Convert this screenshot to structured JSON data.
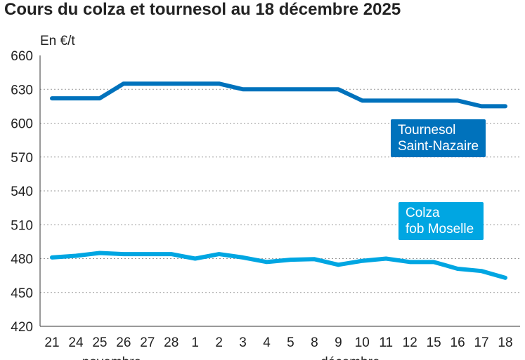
{
  "chart_data": {
    "type": "line",
    "title": "Cours du colza et tournesol au 18 décembre 2025",
    "ylabel": "En €/t",
    "ylim": [
      420,
      660
    ],
    "yticks": [
      420,
      450,
      480,
      510,
      540,
      570,
      600,
      630,
      660
    ],
    "categories": [
      "21",
      "24",
      "25",
      "26",
      "27",
      "28",
      "1",
      "2",
      "3",
      "4",
      "5",
      "8",
      "9",
      "10",
      "11",
      "12",
      "15",
      "16",
      "17",
      "18"
    ],
    "month_labels": [
      "novembre",
      "décembre"
    ],
    "grid": true,
    "series": [
      {
        "name": "Tournesol Saint-Nazaire",
        "name_lines": [
          "Tournesol",
          "Saint-Nazaire"
        ],
        "color": "#0072bc",
        "values": [
          622,
          622,
          622,
          635,
          635,
          635,
          635,
          635,
          630,
          630,
          630,
          630,
          630,
          620,
          620,
          620,
          620,
          620,
          615,
          615
        ]
      },
      {
        "name": "Colza fob Moselle",
        "name_lines": [
          "Colza",
          "fob Moselle"
        ],
        "color": "#00a6e2",
        "values": [
          481,
          482.5,
          485,
          484,
          484,
          484,
          480,
          484,
          481,
          477,
          479,
          479.5,
          474.5,
          478,
          480,
          477,
          477,
          471,
          469,
          463
        ]
      }
    ]
  }
}
